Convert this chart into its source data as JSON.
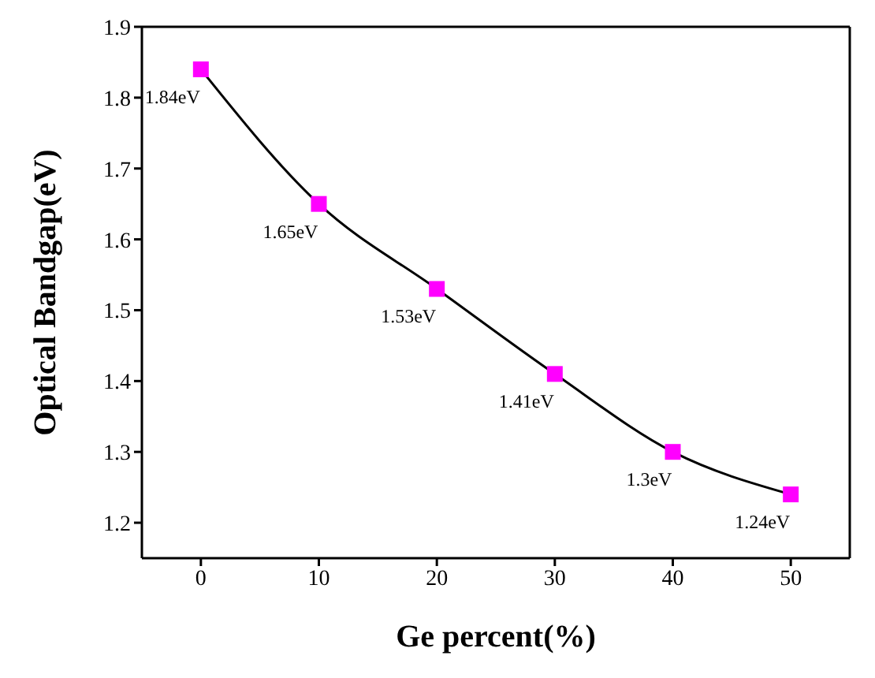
{
  "chart_data": {
    "type": "scatter",
    "xlabel": "Ge percent(%)",
    "ylabel": "Optical Bandgap(eV)",
    "x": [
      0,
      10,
      20,
      30,
      40,
      50
    ],
    "series": [
      {
        "type": "line",
        "color": "#000000",
        "marker": "none",
        "values": [
          1.84,
          1.65,
          1.53,
          1.41,
          1.3,
          1.24
        ]
      },
      {
        "color": "#ff00ff",
        "marker": "square",
        "values": [
          1.84,
          1.65,
          1.53,
          1.41,
          1.3,
          1.24
        ],
        "value_labels": [
          "1.84eV",
          "1.65eV",
          "1.53eV",
          "1.41eV",
          "1.3eV",
          "1.24eV"
        ]
      }
    ],
    "xlim": [
      -5,
      55
    ],
    "xticks": [
      0,
      10,
      20,
      30,
      40,
      50
    ],
    "ylim": [
      1.15,
      1.9
    ],
    "yticks": [
      1.2,
      1.3,
      1.4,
      1.5,
      1.6,
      1.7,
      1.8,
      1.9
    ],
    "grid": false,
    "legend": false
  }
}
